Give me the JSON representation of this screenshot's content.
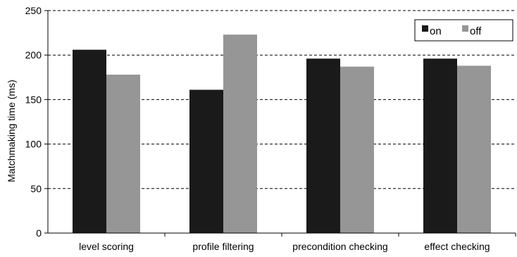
{
  "chart_data": {
    "type": "bar",
    "title": "",
    "xlabel": "",
    "ylabel": "Matchmaking time (ms)",
    "categories": [
      "level scoring",
      "profile filtering",
      "precondition checking",
      "effect checking"
    ],
    "series": [
      {
        "name": "on",
        "color": "#1a1a1a",
        "values": [
          206,
          161,
          196,
          196
        ]
      },
      {
        "name": "off",
        "color": "#969696",
        "values": [
          178,
          223,
          187,
          188
        ]
      }
    ],
    "ylim": [
      0,
      250
    ],
    "yticks": [
      "0",
      "50",
      "100",
      "150",
      "200",
      "250"
    ],
    "grid": "horizontal dashed",
    "legend_position": "top-right"
  }
}
